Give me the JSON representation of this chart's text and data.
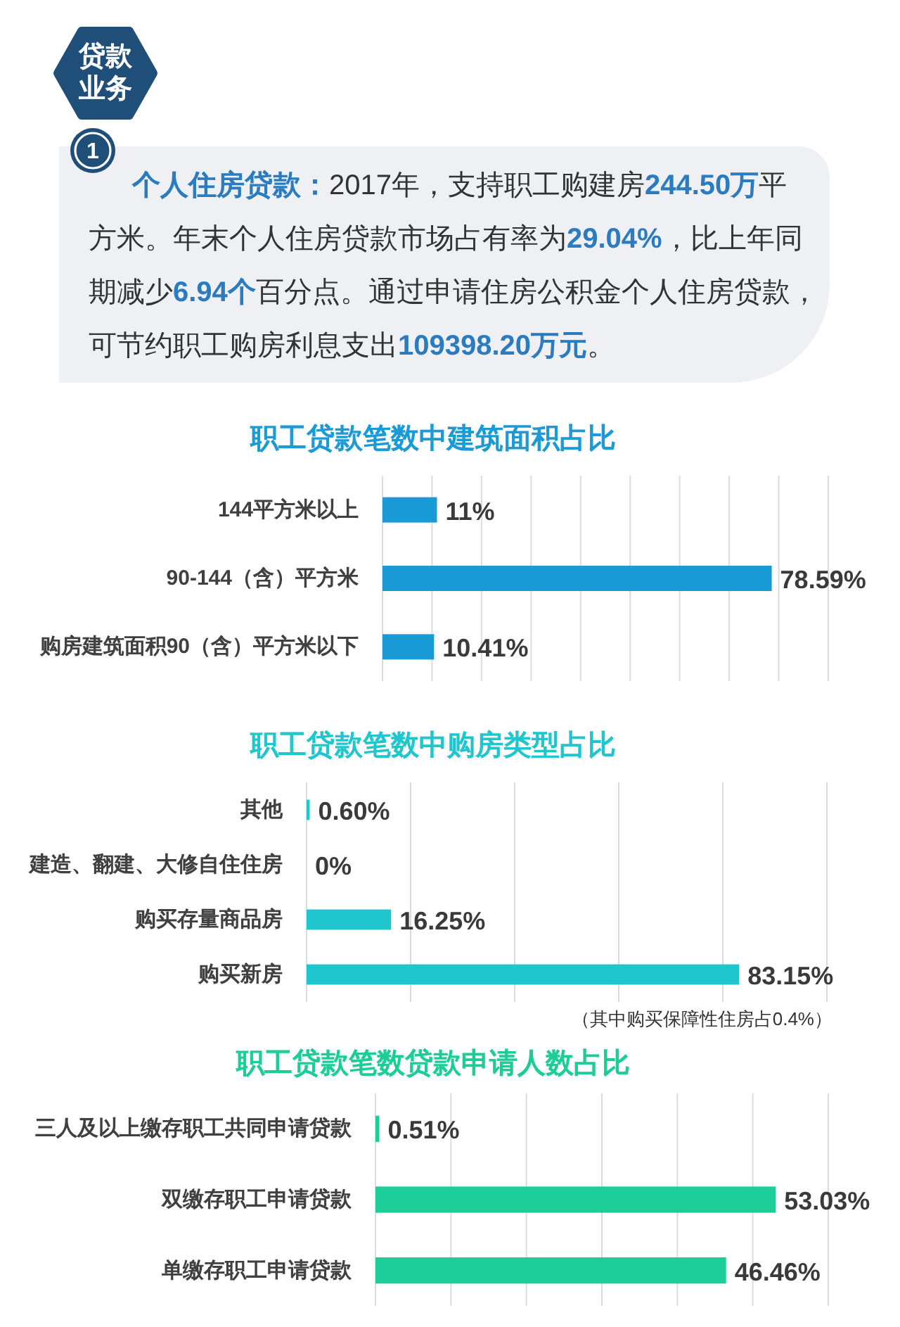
{
  "chart_data": [
    {
      "type": "other",
      "title": "贷款业务",
      "subtitle": "1",
      "annotations": [
        "个人住房贷款：",
        "2017年，支持职工购建房",
        "244.50万",
        "平",
        "方米。年末个人住房贷款市场占有率为",
        "29.04%",
        "，比上年同",
        "期减少",
        "6.94个",
        "百分点。通过申请住房公积金个人住房贷款，",
        "可节约职工购房利息支出",
        "109398.20万元",
        "。"
      ]
    },
    {
      "type": "bar",
      "orientation": "horizontal",
      "title": "职工贷款笔数中建筑面积占比",
      "categories": [
        "144平方米以上",
        "90-144（含）平方米",
        "购房建筑面积90（含）平方米以下"
      ],
      "values": [
        11,
        78.59,
        10.41
      ],
      "value_labels": [
        "11%",
        "78.59%",
        "10.41%"
      ],
      "color": "#1a9bd6",
      "xlim": [
        0,
        90
      ],
      "xticks": [
        {
          "value": 0,
          "label": null
        },
        {
          "value": 10,
          "label": null
        },
        {
          "value": 20,
          "label": null
        },
        {
          "value": 30,
          "label": null
        },
        {
          "value": 40,
          "label": null
        },
        {
          "value": 50,
          "label": null
        },
        {
          "value": 60,
          "label": null
        },
        {
          "value": 70,
          "label": null
        },
        {
          "value": 80,
          "label": null
        },
        {
          "value": 90,
          "label": null
        }
      ],
      "grid": "x",
      "tick_labels": "y"
    },
    {
      "type": "bar",
      "orientation": "horizontal",
      "title": "职工贷款笔数中购房类型占比",
      "categories": [
        "其他",
        "建造、翻建、大修自住住房",
        "购买存量商品房",
        "购买新房"
      ],
      "values": [
        0.6,
        0,
        16.25,
        83.15
      ],
      "value_labels": [
        "0.60%",
        "0%",
        "16.25%",
        "83.15%"
      ],
      "color": "#20c6ce",
      "xlim": [
        0,
        100
      ],
      "xticks": [
        {
          "value": 0,
          "label": null
        },
        {
          "value": 20,
          "label": null
        },
        {
          "value": 40,
          "label": null
        },
        {
          "value": 60,
          "label": null
        },
        {
          "value": 80,
          "label": null
        },
        {
          "value": 100,
          "label": null
        }
      ],
      "grid": "x",
      "tick_labels": "y",
      "annotations": [
        "（其中购买保障性住房占0.4%）"
      ]
    },
    {
      "type": "bar",
      "orientation": "horizontal",
      "title": "职工贷款笔数贷款申请人数占比",
      "categories": [
        "三人及以上缴存职工共同申请贷款",
        "双缴存职工申请贷款",
        "单缴存职工申请贷款"
      ],
      "values": [
        0.51,
        53.03,
        46.46
      ],
      "value_labels": [
        "0.51%",
        "53.03%",
        "46.46%"
      ],
      "color": "#1ccd98",
      "xlim": [
        0,
        60
      ],
      "xticks": [
        {
          "value": 0,
          "label": null
        },
        {
          "value": 10,
          "label": null
        },
        {
          "value": 20,
          "label": null
        },
        {
          "value": 30,
          "label": null
        },
        {
          "value": 40,
          "label": null
        },
        {
          "value": 50,
          "label": null
        },
        {
          "value": 60,
          "label": null
        }
      ],
      "grid": "x",
      "tick_labels": "y"
    }
  ]
}
